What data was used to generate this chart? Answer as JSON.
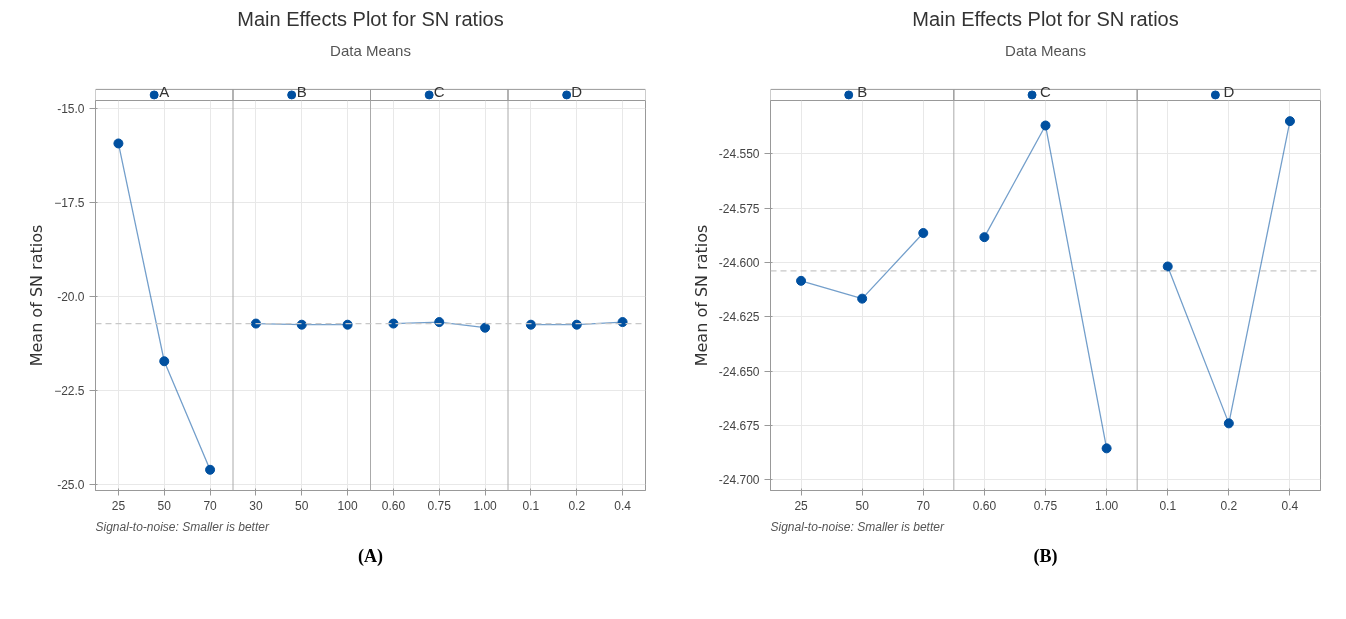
{
  "chart_data": [
    {
      "type": "line",
      "title": "Main Effects Plot for SN ratios",
      "subtitle": "Data Means",
      "ylabel": "Mean of SN ratios",
      "categories": [
        "25",
        "50",
        "70",
        "30",
        "50",
        "100",
        "0.60",
        "0.75",
        "1.00",
        "0.1",
        "0.2",
        "0.4"
      ],
      "series": [
        {
          "name": "A",
          "color": "#0050a0",
          "values": [
            -15.94,
            -21.72,
            -24.6,
            null,
            null,
            null,
            null,
            null,
            null,
            null,
            null,
            null
          ]
        },
        {
          "name": "B",
          "color": "#0050a0",
          "values": [
            null,
            null,
            null,
            -20.72,
            -20.75,
            -20.75,
            null,
            null,
            null,
            null,
            null,
            null
          ]
        },
        {
          "name": "C",
          "color": "#0050a0",
          "values": [
            null,
            null,
            null,
            null,
            null,
            null,
            -20.72,
            -20.68,
            -20.83,
            null,
            null,
            null
          ]
        },
        {
          "name": "D",
          "color": "#0050a0",
          "values": [
            null,
            null,
            null,
            null,
            null,
            null,
            null,
            null,
            null,
            -20.75,
            -20.75,
            -20.68
          ]
        }
      ],
      "ylim": [
        -25.15,
        -14.8
      ],
      "yticks": [
        {
          "value": -25,
          "label": "-25.0"
        },
        -22.5,
        {
          "value": -20,
          "label": "-20.0"
        },
        -17.5,
        {
          "value": -15,
          "label": "-15.0"
        }
      ],
      "ref_lines": [
        {
          "axis": "y",
          "value": -20.72,
          "color": "#c8c8c8",
          "line_style": "dashed"
        }
      ],
      "grid": true,
      "marker": "circle",
      "legend": "top",
      "annotations": [
        "Signal-to-noise: Smaller is better",
        "(A)"
      ]
    },
    {
      "type": "line",
      "title": "Main Effects Plot for SN ratios",
      "subtitle": "Data Means",
      "ylabel": "Mean of SN ratios",
      "categories": [
        "25",
        "50",
        "70",
        "0.60",
        "0.75",
        "1.00",
        "0.1",
        "0.2",
        "0.4"
      ],
      "series": [
        {
          "name": "B",
          "color": "#0050a0",
          "values": [
            -24.6085,
            -24.6167,
            -24.5865,
            null,
            null,
            null,
            null,
            null,
            null
          ]
        },
        {
          "name": "C",
          "color": "#0050a0",
          "values": [
            null,
            null,
            null,
            -24.5884,
            -24.537,
            -24.6856,
            null,
            null,
            null
          ]
        },
        {
          "name": "D",
          "color": "#0050a0",
          "values": [
            null,
            null,
            null,
            null,
            null,
            null,
            -24.6019,
            -24.6741,
            -24.535
          ]
        }
      ],
      "ylim": [
        -24.705,
        -24.5255
      ],
      "yticks": [
        {
          "value": -24.7,
          "label": "-24.700"
        },
        {
          "value": -24.675,
          "label": "-24.675"
        },
        {
          "value": -24.65,
          "label": "-24.650"
        },
        {
          "value": -24.625,
          "label": "-24.625"
        },
        {
          "value": -24.6,
          "label": "-24.600"
        },
        {
          "value": -24.575,
          "label": "-24.575"
        },
        {
          "value": -24.55,
          "label": "-24.550"
        }
      ],
      "ref_lines": [
        {
          "axis": "y",
          "value": -24.6039,
          "color": "#c8c8c8",
          "line_style": "dashed"
        }
      ],
      "grid": true,
      "marker": "circle",
      "legend": "top",
      "annotations": [
        "Signal-to-noise: Smaller is better",
        "(B)"
      ]
    }
  ]
}
